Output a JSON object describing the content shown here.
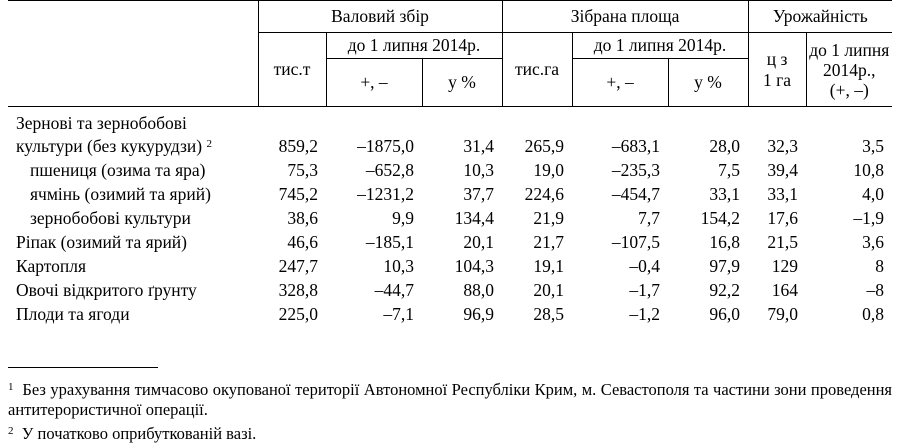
{
  "header": {
    "gross_harvest": "Валовий збір",
    "harvested_area": "Зібрана площа",
    "yield": "Урожайність",
    "as_of_date": "до 1 липня 2014р.",
    "thous_t": "тис.т",
    "thous_ha": "тис.га",
    "plus_minus": "+, –",
    "percent": "у %",
    "centners_l1": "ц з",
    "centners_l2": "1 га",
    "yield_cmp_l1": "до 1 липня",
    "yield_cmp_l2": "2014р.,",
    "yield_cmp_l3": "(+, –)"
  },
  "rows": [
    {
      "label_l1": "Зернові та зернобобові",
      "label_l2": "культури (без кукурудзи)",
      "sup": "2",
      "values": [
        "859,2",
        "–1875,0",
        "31,4",
        "265,9",
        "–683,1",
        "28,0",
        "32,3",
        "3,5"
      ]
    },
    {
      "label": "пшениця (озима та яра)",
      "values": [
        "75,3",
        "–652,8",
        "10,3",
        "19,0",
        "–235,3",
        "7,5",
        "39,4",
        "10,8"
      ]
    },
    {
      "label": "ячмінь (озимий та ярий)",
      "values": [
        "745,2",
        "–1231,2",
        "37,7",
        "224,6",
        "–454,7",
        "33,1",
        "33,1",
        "4,0"
      ]
    },
    {
      "label": "зернобобові культури",
      "values": [
        "38,6",
        "9,9",
        "134,4",
        "21,9",
        "7,7",
        "154,2",
        "17,6",
        "–1,9"
      ]
    },
    {
      "label": "Ріпак  (озимий та ярий)",
      "values": [
        "46,6",
        "–185,1",
        "20,1",
        "21,7",
        "–107,5",
        "16,8",
        "21,5",
        "3,6"
      ]
    },
    {
      "label": "Картопля",
      "values": [
        "247,7",
        "10,3",
        "104,3",
        "19,1",
        "–0,4",
        "97,9",
        "129",
        "8"
      ]
    },
    {
      "label": "Овочі відкритого ґрунту",
      "values": [
        "328,8",
        "–44,7",
        "88,0",
        "20,1",
        "–1,7",
        "92,2",
        "164",
        "–8"
      ]
    },
    {
      "label": "Плоди та ягоди",
      "values": [
        "225,0",
        "–7,1",
        "96,9",
        "28,5",
        "–1,2",
        "96,0",
        "79,0",
        "0,8"
      ]
    }
  ],
  "footnotes": [
    {
      "mark": "1",
      "text": "Без урахування тимчасово окупованої території Автономної Республіки Крим, м. Севастополя та частини зони проведення антитерористичної операції."
    },
    {
      "mark": "2",
      "text": "У початково оприбуткованій вазі."
    }
  ]
}
